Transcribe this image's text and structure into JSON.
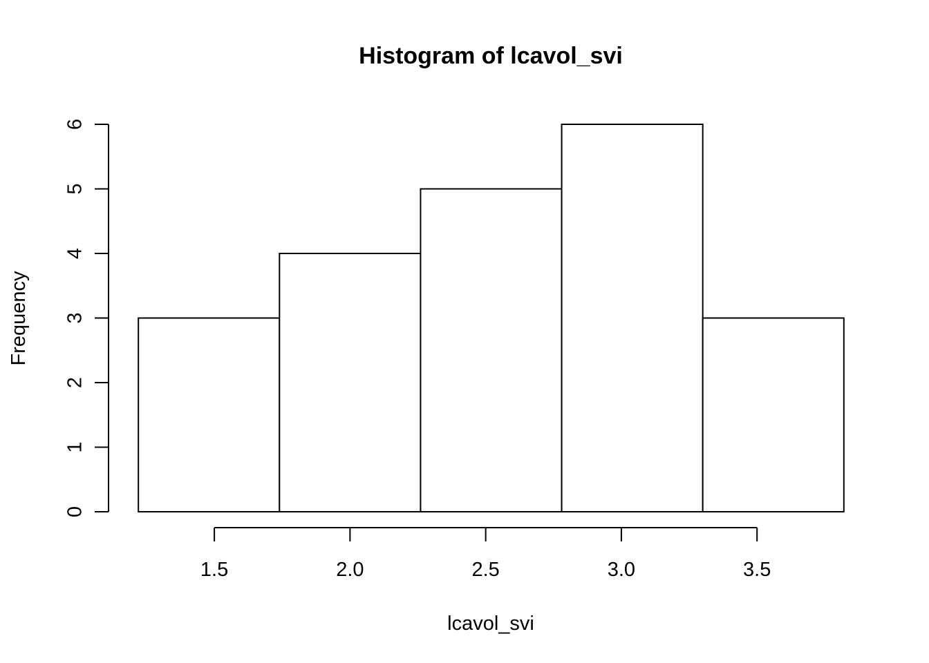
{
  "chart_data": {
    "type": "bar",
    "histogram": true,
    "title": "Histogram of lcavol_svi",
    "xlabel": "lcavol_svi",
    "ylabel": "Frequency",
    "bins": [
      {
        "start": 1.22,
        "end": 1.74,
        "count": 3
      },
      {
        "start": 1.74,
        "end": 2.26,
        "count": 4
      },
      {
        "start": 2.26,
        "end": 2.78,
        "count": 5
      },
      {
        "start": 2.78,
        "end": 3.3,
        "count": 6
      },
      {
        "start": 3.3,
        "end": 3.82,
        "count": 3
      }
    ],
    "values": [
      3,
      4,
      5,
      6,
      3
    ],
    "xlim": [
      1.11,
      3.93
    ],
    "ylim": [
      0,
      6
    ],
    "x_ticks": [
      1.5,
      2.0,
      2.5,
      3.0,
      3.5
    ],
    "x_tick_labels": [
      "1.5",
      "2.0",
      "2.5",
      "3.0",
      "3.5"
    ],
    "y_ticks": [
      0,
      1,
      2,
      3,
      4,
      5,
      6
    ],
    "y_tick_labels": [
      "0",
      "1",
      "2",
      "3",
      "4",
      "5",
      "6"
    ],
    "fill_color": "#ffffff",
    "stroke_color": "#000000",
    "grid": false
  }
}
